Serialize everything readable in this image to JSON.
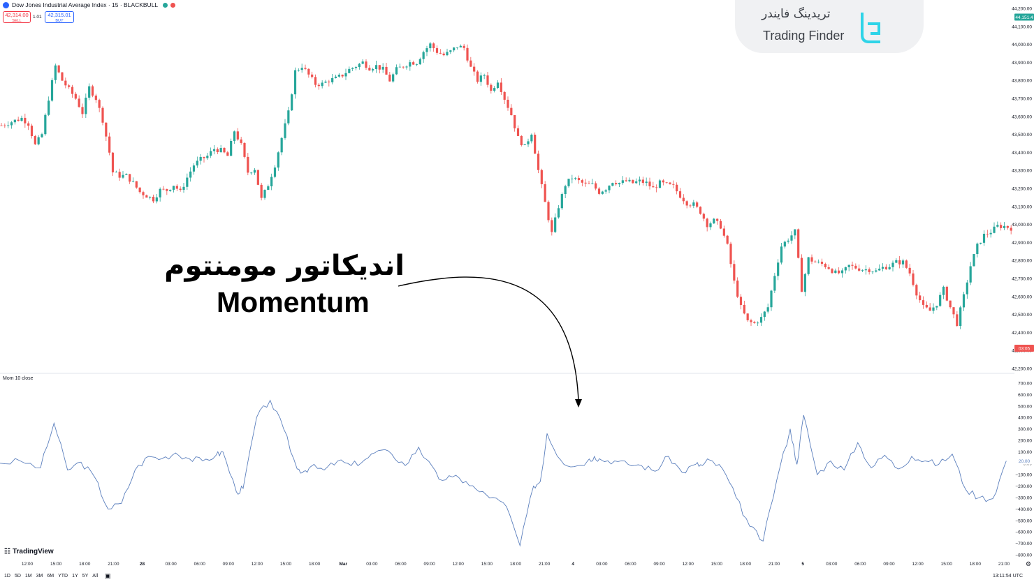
{
  "header": {
    "symbol_title": "Dow Jones Industrial Average Index · 15 · BLACKBULL",
    "sell_price": "42,314.00",
    "sell_label": "SELL",
    "buy_price": "42,315.01",
    "buy_label": "BUY",
    "spread": "1.01"
  },
  "overlay": {
    "title_fa": "اندیکاتور مومنتوم",
    "title_en": "Momentum"
  },
  "brand": {
    "name_fa": "تریدینگ فایندر",
    "name_en": "Trading Finder"
  },
  "indicator_label": "Mom 10 close",
  "tradingview_label": "TradingView",
  "timeframes": [
    "1D",
    "5D",
    "1M",
    "3M",
    "6M",
    "YTD",
    "1Y",
    "5Y",
    "All"
  ],
  "clock": "13:11:54 UTC",
  "colors": {
    "up": "#26a69a",
    "down": "#ef5350",
    "momentum_line": "#5b7fbd",
    "last_price_badge": "#26a69a",
    "countdown_badge": "#ef5350"
  },
  "price_axis": {
    "labels": [
      "44,200.00",
      "44,100.00",
      "44,000.00",
      "43,900.00",
      "43,800.00",
      "43,700.00",
      "43,600.00",
      "43,500.00",
      "43,400.00",
      "43,300.00",
      "43,200.00",
      "43,100.00",
      "43,000.00",
      "42,900.00",
      "42,800.00",
      "42,700.00",
      "42,600.00",
      "42,500.00",
      "42,400.00",
      "42,300.00",
      "42,200.00"
    ],
    "last_price": "44,151.4",
    "countdown": "03:05"
  },
  "momentum_axis": {
    "labels": [
      "700.00",
      "600.00",
      "500.00",
      "400.00",
      "300.00",
      "200.00",
      "100.00",
      "0.00",
      "−100.00",
      "−200.00",
      "−300.00",
      "−400.00",
      "−500.00",
      "−600.00",
      "−700.00",
      "−800.00"
    ],
    "current_value": "20.00"
  },
  "time_axis": {
    "labels": [
      "12:00",
      "15:00",
      "18:00",
      "21:00",
      "28",
      "03:00",
      "06:00",
      "09:00",
      "12:00",
      "15:00",
      "18:00",
      "Mar",
      "03:00",
      "06:00",
      "09:00",
      "12:00",
      "15:00",
      "18:00",
      "21:00",
      "4",
      "03:00",
      "06:00",
      "09:00",
      "12:00",
      "15:00",
      "18:00",
      "21:00",
      "5",
      "03:00",
      "06:00",
      "09:00",
      "12:00",
      "15:00",
      "18:00",
      "21:00"
    ]
  },
  "chart_data": [
    {
      "type": "candlestick",
      "series_kind": "OHLC 15m",
      "ylim": [
        42200,
        44200
      ],
      "close_path": [
        [
          0,
          43550
        ],
        [
          3,
          43570
        ],
        [
          6,
          43590
        ],
        [
          8,
          43560
        ],
        [
          10,
          43440
        ],
        [
          12,
          43500
        ],
        [
          14,
          43700
        ],
        [
          16,
          43880
        ],
        [
          18,
          43800
        ],
        [
          20,
          43750
        ],
        [
          22,
          43700
        ],
        [
          24,
          43620
        ],
        [
          26,
          43760
        ],
        [
          28,
          43700
        ],
        [
          30,
          43580
        ],
        [
          32,
          43400
        ],
        [
          33,
          43290
        ],
        [
          35,
          43270
        ],
        [
          37,
          43270
        ],
        [
          39,
          43230
        ],
        [
          41,
          43180
        ],
        [
          43,
          43160
        ],
        [
          45,
          43140
        ],
        [
          47,
          43190
        ],
        [
          49,
          43190
        ],
        [
          51,
          43220
        ],
        [
          53,
          43180
        ],
        [
          55,
          43260
        ],
        [
          57,
          43330
        ],
        [
          59,
          43360
        ],
        [
          61,
          43380
        ],
        [
          63,
          43420
        ],
        [
          65,
          43410
        ],
        [
          67,
          43380
        ],
        [
          69,
          43520
        ],
        [
          71,
          43440
        ],
        [
          73,
          43290
        ],
        [
          75,
          43310
        ],
        [
          77,
          43140
        ],
        [
          79,
          43220
        ],
        [
          81,
          43330
        ],
        [
          83,
          43480
        ],
        [
          85,
          43620
        ],
        [
          87,
          43850
        ],
        [
          89,
          43880
        ],
        [
          91,
          43830
        ],
        [
          93,
          43780
        ],
        [
          95,
          43780
        ],
        [
          97,
          43800
        ],
        [
          99,
          43810
        ],
        [
          101,
          43830
        ],
        [
          103,
          43860
        ],
        [
          105,
          43880
        ],
        [
          107,
          43900
        ],
        [
          109,
          43870
        ],
        [
          111,
          43880
        ],
        [
          113,
          43860
        ],
        [
          115,
          43800
        ],
        [
          117,
          43860
        ],
        [
          119,
          43880
        ],
        [
          121,
          43900
        ],
        [
          123,
          43900
        ],
        [
          125,
          43960
        ],
        [
          127,
          44000
        ],
        [
          129,
          43960
        ],
        [
          131,
          43940
        ],
        [
          133,
          43960
        ],
        [
          135,
          43990
        ],
        [
          137,
          43980
        ],
        [
          139,
          43870
        ],
        [
          141,
          43800
        ],
        [
          143,
          43830
        ],
        [
          145,
          43740
        ],
        [
          147,
          43800
        ],
        [
          149,
          43700
        ],
        [
          151,
          43610
        ],
        [
          153,
          43480
        ],
        [
          155,
          43430
        ],
        [
          157,
          43510
        ],
        [
          159,
          43300
        ],
        [
          161,
          43120
        ],
        [
          163,
          42950
        ],
        [
          165,
          43100
        ],
        [
          167,
          43220
        ],
        [
          169,
          43260
        ],
        [
          171,
          43240
        ],
        [
          173,
          43220
        ],
        [
          175,
          43220
        ],
        [
          177,
          43180
        ],
        [
          179,
          43200
        ],
        [
          181,
          43240
        ],
        [
          183,
          43230
        ],
        [
          185,
          43240
        ],
        [
          187,
          43230
        ],
        [
          189,
          43240
        ],
        [
          191,
          43230
        ],
        [
          193,
          43200
        ],
        [
          195,
          43230
        ],
        [
          197,
          43220
        ],
        [
          199,
          43210
        ],
        [
          201,
          43160
        ],
        [
          203,
          43120
        ],
        [
          205,
          43110
        ],
        [
          207,
          43070
        ],
        [
          209,
          43000
        ],
        [
          211,
          43020
        ],
        [
          213,
          42990
        ],
        [
          215,
          42880
        ],
        [
          217,
          42680
        ],
        [
          219,
          42540
        ],
        [
          221,
          42460
        ],
        [
          223,
          42450
        ],
        [
          225,
          42480
        ],
        [
          227,
          42540
        ],
        [
          229,
          42720
        ],
        [
          231,
          42880
        ],
        [
          233,
          42920
        ],
        [
          235,
          42960
        ],
        [
          237,
          42640
        ],
        [
          239,
          42810
        ],
        [
          241,
          42790
        ],
        [
          243,
          42780
        ],
        [
          245,
          42760
        ],
        [
          247,
          42730
        ],
        [
          249,
          42730
        ],
        [
          251,
          42770
        ],
        [
          253,
          42760
        ],
        [
          255,
          42750
        ],
        [
          257,
          42750
        ],
        [
          259,
          42740
        ],
        [
          261,
          42760
        ],
        [
          263,
          42770
        ],
        [
          265,
          42790
        ],
        [
          267,
          42790
        ],
        [
          269,
          42730
        ],
        [
          271,
          42620
        ],
        [
          273,
          42540
        ],
        [
          275,
          42520
        ],
        [
          277,
          42560
        ],
        [
          279,
          42640
        ],
        [
          281,
          42540
        ],
        [
          283,
          42450
        ],
        [
          285,
          42600
        ],
        [
          287,
          42770
        ],
        [
          289,
          42880
        ],
        [
          291,
          42940
        ],
        [
          293,
          42960
        ],
        [
          295,
          42990
        ],
        [
          297,
          42990
        ],
        [
          299,
          42980
        ]
      ]
    },
    {
      "type": "line",
      "name": "Mom 10 close",
      "ylim": [
        -800,
        700
      ],
      "x": [
        0,
        6,
        12,
        16,
        20,
        24,
        28,
        32,
        36,
        40,
        44,
        48,
        52,
        56,
        60,
        64,
        66,
        70,
        72,
        76,
        80,
        84,
        88,
        90,
        92,
        96,
        100,
        104,
        108,
        112,
        116,
        120,
        124,
        126,
        130,
        134,
        138,
        142,
        146,
        150,
        154,
        158,
        160,
        162,
        166,
        170,
        174,
        176,
        178,
        182,
        186,
        190,
        194,
        198,
        202,
        206,
        208,
        210,
        214,
        218,
        222,
        226,
        230,
        234,
        236,
        238,
        242,
        246,
        250,
        254,
        258,
        262,
        266,
        270,
        274,
        278,
        282,
        286,
        290,
        294,
        298
      ],
      "values": [
        0,
        20,
        -40,
        350,
        -60,
        10,
        -120,
        -400,
        -350,
        -60,
        60,
        40,
        90,
        40,
        20,
        70,
        100,
        -250,
        -220,
        400,
        550,
        300,
        -50,
        -70,
        -30,
        -60,
        20,
        -20,
        30,
        110,
        80,
        -20,
        140,
        40,
        -140,
        -120,
        -160,
        -250,
        -300,
        -380,
        -720,
        -200,
        -160,
        260,
        30,
        -30,
        20,
        60,
        30,
        20,
        -10,
        -20,
        -70,
        60,
        -80,
        -10,
        -20,
        30,
        -50,
        -300,
        -550,
        -680,
        -150,
        300,
        -10,
        420,
        -100,
        20,
        -60,
        180,
        -40,
        70,
        -50,
        60,
        20,
        -10,
        80,
        -230,
        -300,
        -310,
        20
      ]
    }
  ]
}
